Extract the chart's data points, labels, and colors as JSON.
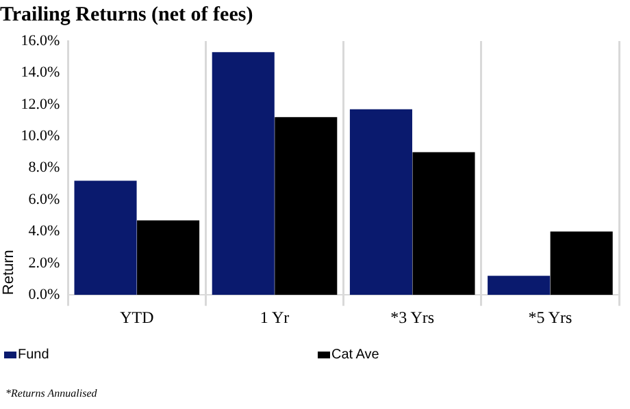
{
  "chart_data": {
    "type": "bar",
    "title": "Trailing Returns (net of fees)",
    "ylabel": "Return",
    "categories": [
      "YTD",
      "1 Yr",
      "*3 Yrs",
      "*5 Yrs"
    ],
    "series": [
      {
        "name": "Fund",
        "color": "#0a1a6e",
        "values": [
          7.2,
          15.3,
          11.7,
          1.2
        ]
      },
      {
        "name": "Cat Ave",
        "color": "#000000",
        "values": [
          4.7,
          11.2,
          9.0,
          4.0
        ]
      }
    ],
    "ylim": [
      0,
      16
    ],
    "yticks": [
      {
        "value": 0,
        "label": "0.0%"
      },
      {
        "value": 2,
        "label": "2.0%"
      },
      {
        "value": 4,
        "label": "4.0%"
      },
      {
        "value": 6,
        "label": "6.0%"
      },
      {
        "value": 8,
        "label": "8.0%"
      },
      {
        "value": 10,
        "label": "10.0%"
      },
      {
        "value": 12,
        "label": "12.0%"
      },
      {
        "value": 14,
        "label": "14.0%"
      },
      {
        "value": 16,
        "label": "16.0%"
      }
    ],
    "grid": "x",
    "legend": "bottom",
    "annotations": [
      "*Returns Annualised"
    ]
  }
}
